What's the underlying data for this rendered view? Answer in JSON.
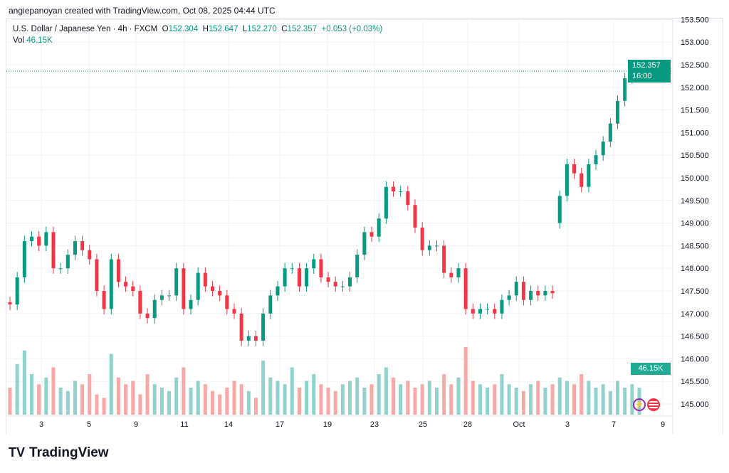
{
  "credit": "angiepanoyan created with TradingView.com, Oct 08, 2025 04:44 UTC",
  "legend": {
    "symbol": "U.S. Dollar / Japanese Yen · 4h · FXCM",
    "o_label": "O",
    "o": "152.304",
    "h_label": "H",
    "h": "152.647",
    "l_label": "L",
    "l": "152.270",
    "c_label": "C",
    "c": "152.357",
    "change": "+0.053 (+0.03%)",
    "vol_label": "Vol",
    "vol": "46.15K"
  },
  "last_price": {
    "price": "152.357",
    "countdown": "16:00"
  },
  "vol_badge": "46.15K",
  "logo": "TradingView",
  "colors": {
    "up": "#089981",
    "down": "#f23645",
    "up_vol": "#92d2cc",
    "down_vol": "#f7a9a7"
  },
  "chart_data": {
    "type": "candlestick",
    "title": "U.S. Dollar / Japanese Yen · 4h · FXCM",
    "ylim": [
      144.8,
      153.6
    ],
    "y_ticks": [
      "145.000",
      "145.500",
      "146.000",
      "146.500",
      "147.000",
      "147.500",
      "148.000",
      "148.500",
      "149.000",
      "149.500",
      "150.000",
      "150.500",
      "151.000",
      "151.500",
      "152.000",
      "152.500",
      "153.000",
      "153.500"
    ],
    "x_ticks": [
      "3",
      "5",
      "9",
      "11",
      "14",
      "17",
      "19",
      "23",
      "25",
      "28",
      "Oct",
      "3",
      "7",
      "9"
    ],
    "gap_after_index": 75,
    "closes": [
      147.2,
      147.8,
      148.6,
      148.7,
      148.5,
      148.8,
      148.0,
      148.0,
      148.3,
      148.6,
      148.4,
      148.2,
      147.5,
      147.1,
      148.2,
      147.7,
      147.6,
      147.5,
      147.0,
      146.9,
      147.3,
      147.4,
      147.4,
      148.0,
      147.1,
      147.3,
      147.9,
      147.6,
      147.5,
      147.4,
      147.1,
      147.0,
      146.4,
      146.5,
      146.4,
      147.0,
      147.4,
      147.6,
      148.0,
      148.0,
      147.6,
      148.0,
      148.2,
      147.8,
      147.7,
      147.6,
      147.6,
      147.8,
      148.3,
      148.8,
      148.7,
      149.1,
      149.8,
      149.7,
      149.7,
      149.4,
      148.9,
      148.4,
      148.5,
      148.5,
      147.9,
      147.8,
      148.0,
      147.1,
      147.0,
      147.1,
      147.1,
      147.0,
      147.3,
      147.4,
      147.7,
      147.3,
      147.5,
      147.4,
      147.5,
      147.45,
      149.6,
      150.3,
      150.1,
      149.8,
      150.3,
      150.5,
      150.8,
      151.2,
      151.7,
      152.2,
      152.304,
      152.357
    ],
    "first_open": 147.25,
    "volume": [
      40,
      75,
      95,
      60,
      45,
      55,
      70,
      40,
      35,
      50,
      45,
      60,
      30,
      25,
      90,
      55,
      45,
      50,
      30,
      60,
      45,
      40,
      35,
      55,
      70,
      40,
      50,
      45,
      35,
      30,
      40,
      50,
      45,
      35,
      25,
      80,
      55,
      50,
      45,
      70,
      40,
      50,
      60,
      45,
      40,
      35,
      45,
      50,
      55,
      40,
      45,
      60,
      70,
      55,
      45,
      50,
      40,
      45,
      50,
      40,
      60,
      45,
      55,
      100,
      50,
      45,
      40,
      45,
      60,
      45,
      40,
      35,
      45,
      50,
      40,
      45,
      55,
      50,
      45,
      60,
      50,
      40,
      45,
      35,
      50,
      40,
      45,
      40
    ]
  }
}
